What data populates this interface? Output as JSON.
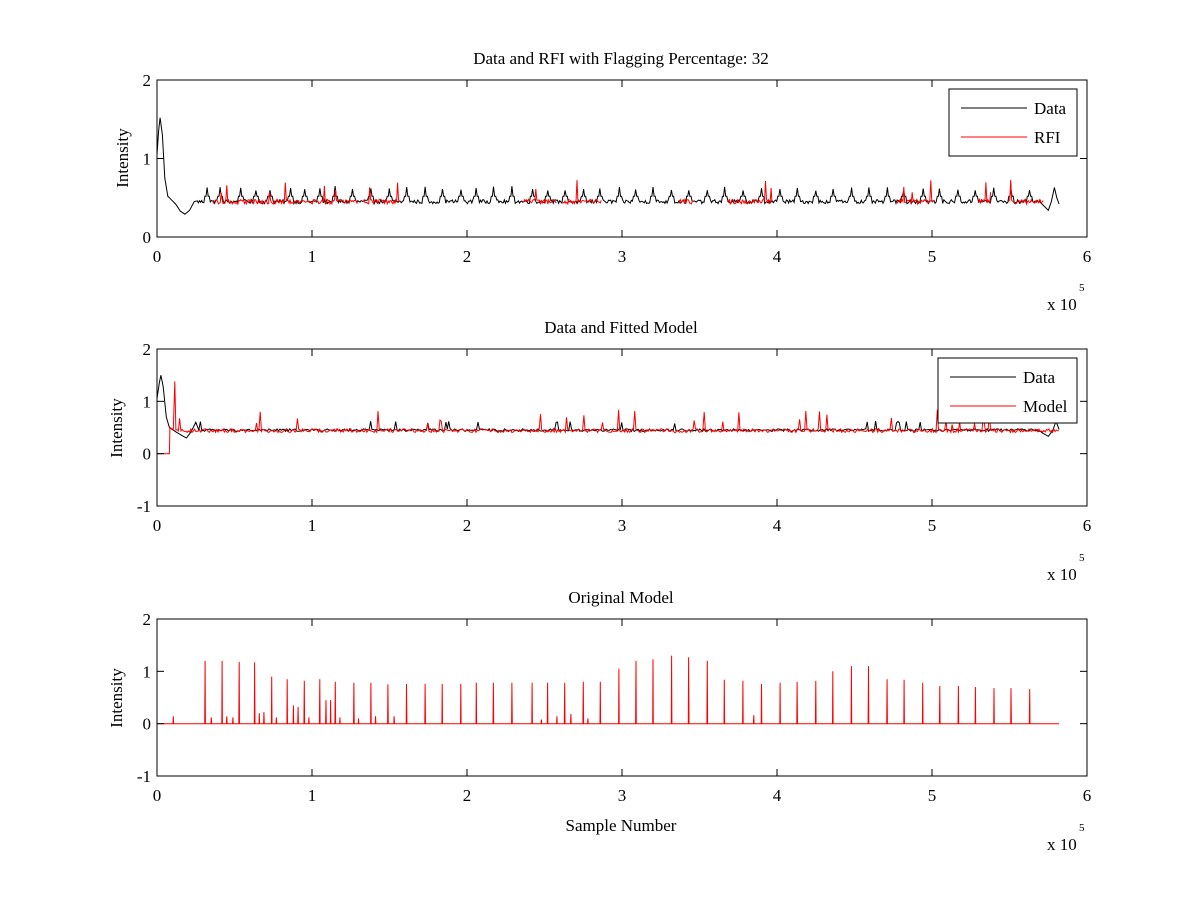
{
  "figure": {
    "background": "#ffffff"
  },
  "colors": {
    "data": "#000000",
    "rfi": "#ff0000",
    "model": "#ff0000"
  },
  "chart_data": [
    {
      "type": "line",
      "title": "Data and RFI with Flagging Percentage: 32",
      "xlabel": "",
      "ylabel": "Intensity",
      "xlim": [
        0,
        600000
      ],
      "ylim": [
        0,
        2
      ],
      "xticks": [
        0,
        1,
        2,
        3,
        4,
        5,
        6
      ],
      "yticks": [
        0,
        1,
        2
      ],
      "x_multiplier": {
        "base": "x 10",
        "exponent": "5"
      },
      "legend": {
        "placement": "top-right",
        "entries": [
          "Data",
          "RFI"
        ]
      },
      "series": [
        {
          "name": "Data",
          "color": "#000000",
          "baseline": 0.45,
          "x_end": 582000,
          "features": {
            "start_peak": {
              "x": 2000,
              "y": 1.52
            },
            "dip": {
              "x": 18000,
              "y": 0.29
            },
            "end_peak": {
              "x": 579000,
              "y": 0.63
            },
            "end_dip": {
              "x": 575000,
              "y": 0.34
            }
          },
          "spikes_x": [
            10000,
            24000,
            32000,
            41000,
            54000,
            64000,
            73000,
            86000,
            95000,
            105000,
            115000,
            126000,
            138000,
            150000,
            161000,
            173000,
            184000,
            196000,
            206000,
            217000,
            229000,
            242000,
            252000,
            263000,
            275000,
            286000,
            298000,
            309000,
            320000,
            332000,
            343000,
            355000,
            366000,
            378000,
            390000,
            402000,
            413000,
            425000,
            436000,
            448000,
            459000,
            471000,
            482000,
            494000,
            505000,
            517000,
            528000,
            540000,
            551000,
            563000
          ],
          "spike_height": 0.62
        },
        {
          "name": "RFI",
          "color": "#ff0000",
          "baseline": 0.45,
          "segments": [
            [
              36000,
              130000
            ],
            [
              133000,
              157000
            ],
            [
              236000,
              258000
            ],
            [
              262000,
              287000
            ],
            [
              337000,
              346000
            ],
            [
              368000,
              397000
            ],
            [
              477000,
              502000
            ],
            [
              530000,
              538000
            ],
            [
              549000,
              572000
            ]
          ],
          "spike_height": 0.74
        }
      ]
    },
    {
      "type": "line",
      "title": "Data and Fitted Model",
      "xlabel": "",
      "ylabel": "Intensity",
      "xlim": [
        0,
        600000
      ],
      "ylim": [
        -1,
        2
      ],
      "xticks": [
        0,
        1,
        2,
        3,
        4,
        5,
        6
      ],
      "yticks": [
        -1,
        0,
        1,
        2
      ],
      "x_multiplier": {
        "base": "x 10",
        "exponent": "5"
      },
      "legend": {
        "placement": "top-right",
        "entries": [
          "Data",
          "Model"
        ]
      },
      "series": [
        {
          "name": "Data",
          "color": "#000000",
          "baseline": 0.45,
          "x_end": 582000
        },
        {
          "name": "Model",
          "color": "#ff0000",
          "baseline": 0.44,
          "zero_until": 8000,
          "big_spike": {
            "x": 11500,
            "y": 1.38
          },
          "x_end": 582000
        }
      ]
    },
    {
      "type": "line",
      "title": "Original Model",
      "xlabel": "Sample Number",
      "ylabel": "Intensity",
      "xlim": [
        0,
        600000
      ],
      "ylim": [
        -1,
        2
      ],
      "xticks": [
        0,
        1,
        2,
        3,
        4,
        5,
        6
      ],
      "yticks": [
        -1,
        0,
        1,
        2
      ],
      "x_multiplier": {
        "base": "x 10",
        "exponent": "5"
      },
      "series": [
        {
          "name": "",
          "color": "#ff0000",
          "baseline": 0.0,
          "x_end": 582000,
          "spikes": [
            [
              10500,
              0.14
            ],
            [
              31000,
              1.2
            ],
            [
              35000,
              0.12
            ],
            [
              42000,
              1.2
            ],
            [
              45000,
              0.14
            ],
            [
              49000,
              0.12
            ],
            [
              53000,
              1.18
            ],
            [
              63000,
              1.17
            ],
            [
              66000,
              0.2
            ],
            [
              69000,
              0.22
            ],
            [
              74000,
              0.9
            ],
            [
              77000,
              0.12
            ],
            [
              84000,
              0.85
            ],
            [
              88000,
              0.35
            ],
            [
              91000,
              0.32
            ],
            [
              95000,
              0.82
            ],
            [
              98000,
              0.12
            ],
            [
              105000,
              0.85
            ],
            [
              109000,
              0.45
            ],
            [
              112000,
              0.45
            ],
            [
              115000,
              0.8
            ],
            [
              118000,
              0.12
            ],
            [
              127000,
              0.78
            ],
            [
              130000,
              0.1
            ],
            [
              138000,
              0.78
            ],
            [
              141000,
              0.14
            ],
            [
              149000,
              0.75
            ],
            [
              153000,
              0.14
            ],
            [
              161000,
              0.76
            ],
            [
              173000,
              0.76
            ],
            [
              184000,
              0.76
            ],
            [
              196000,
              0.76
            ],
            [
              206000,
              0.78
            ],
            [
              217000,
              0.78
            ],
            [
              229000,
              0.78
            ],
            [
              242000,
              0.78
            ],
            [
              248000,
              0.08
            ],
            [
              252000,
              0.78
            ],
            [
              258000,
              0.14
            ],
            [
              263000,
              0.78
            ],
            [
              267000,
              0.18
            ],
            [
              275000,
              0.8
            ],
            [
              278000,
              0.1
            ],
            [
              286000,
              0.8
            ],
            [
              298000,
              1.05
            ],
            [
              309000,
              1.2
            ],
            [
              320000,
              1.23
            ],
            [
              332000,
              1.3
            ],
            [
              343000,
              1.27
            ],
            [
              355000,
              1.2
            ],
            [
              366000,
              0.84
            ],
            [
              378000,
              0.82
            ],
            [
              385000,
              0.16
            ],
            [
              390000,
              0.76
            ],
            [
              402000,
              0.78
            ],
            [
              413000,
              0.8
            ],
            [
              425000,
              0.82
            ],
            [
              436000,
              1.0
            ],
            [
              448000,
              1.1
            ],
            [
              459000,
              1.1
            ],
            [
              471000,
              0.85
            ],
            [
              482000,
              0.84
            ],
            [
              494000,
              0.78
            ],
            [
              505000,
              0.72
            ],
            [
              517000,
              0.72
            ],
            [
              528000,
              0.7
            ],
            [
              540000,
              0.68
            ],
            [
              551000,
              0.68
            ],
            [
              563000,
              0.66
            ]
          ]
        }
      ]
    }
  ]
}
